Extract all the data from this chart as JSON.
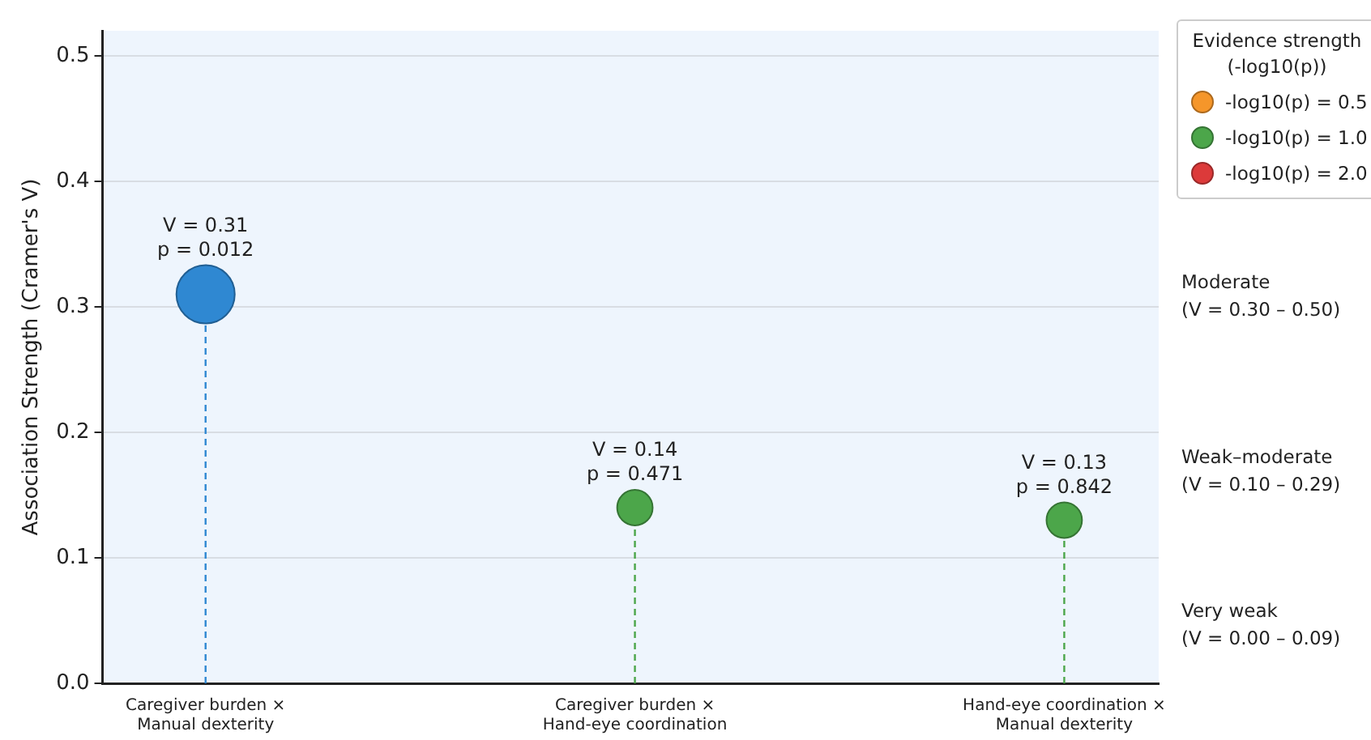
{
  "chart_data": {
    "type": "lollipop",
    "ylabel": "Association Strength (Cramer's V)",
    "legend_title": "Evidence strength\n(-log10(p))",
    "categories": [
      "Caregiver burden ×\nManual dexterity",
      "Caregiver burden ×\nHand-eye coordination",
      "Hand-eye coordination ×\nManual dexterity"
    ],
    "ylim": [
      0,
      0.52
    ],
    "yticks": [
      {
        "value": 0,
        "label": "0.0"
      },
      0.1,
      0.2,
      0.3,
      0.4,
      0.5
    ],
    "grid": "y",
    "legend": "top right",
    "marker": "circle",
    "line_style": "dashed",
    "series": [
      {
        "values": [
          0.31,
          0.14,
          0.13
        ],
        "colors": [
          "#2f88d2",
          "#4ca64a",
          "#4ca64a"
        ],
        "sizes": [
          1,
          0.37,
          0.37
        ],
        "value_labels": [
          "V = 0.31\np = 0.012",
          "V = 0.14\np = 0.471",
          "V = 0.13\np = 0.842"
        ]
      },
      {
        "name": "-log10(p) = 0.5",
        "color": "#f5962a",
        "values": [
          null,
          null,
          null
        ]
      },
      {
        "name": "-log10(p) = 1.0",
        "color": "#4ca64a",
        "values": [
          null,
          null,
          null
        ]
      },
      {
        "name": "-log10(p) = 2.0",
        "color": "#dc3a3a",
        "values": [
          null,
          null,
          null
        ]
      }
    ],
    "annotations": [
      "Moderate\n(V = 0.30 – 0.50)",
      "Weak–moderate\n(V = 0.10 – 0.29)",
      "Very weak\n(V = 0.00 – 0.09)"
    ]
  }
}
